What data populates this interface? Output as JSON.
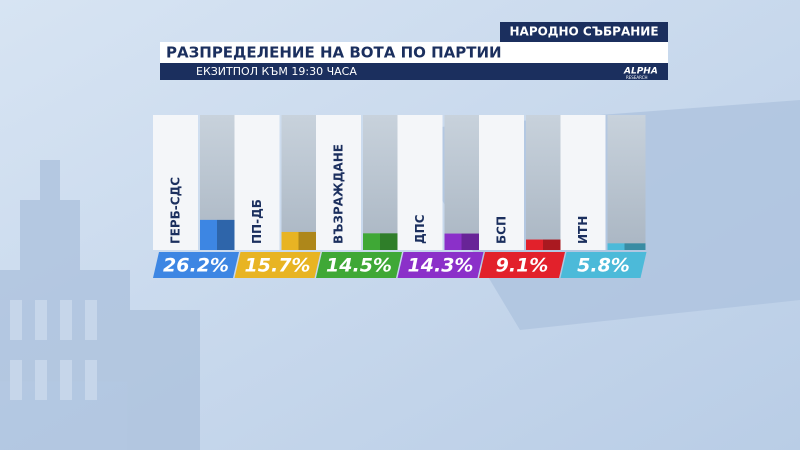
{
  "header": {
    "badge": "НАРОДНО СЪБРАНИЕ",
    "logo": "ALPHA",
    "logo_sub": "RESEARCH"
  },
  "chart_data": {
    "type": "bar",
    "title": "РАЗПРЕДЕЛЕНИЕ НА ВОТА ПО ПАРТИИ",
    "subtitle": "ЕКЗИТПОЛ КЪМ 19:30 ЧАСА",
    "categories": [
      "ГЕРБ-СДС",
      "ПП-ДБ",
      "ВЪЗРАЖДАНЕ",
      "ДПС",
      "БСП",
      "ИТН"
    ],
    "values": [
      26.2,
      15.7,
      14.5,
      14.3,
      9.1,
      5.8
    ],
    "value_labels": [
      "26.2%",
      "15.7%",
      "14.5%",
      "14.3%",
      "9.1%",
      "5.8%"
    ],
    "colors": [
      "#3d86e3",
      "#e8b423",
      "#3fa836",
      "#8b30c9",
      "#e2212b",
      "#4cbad9"
    ]
  }
}
